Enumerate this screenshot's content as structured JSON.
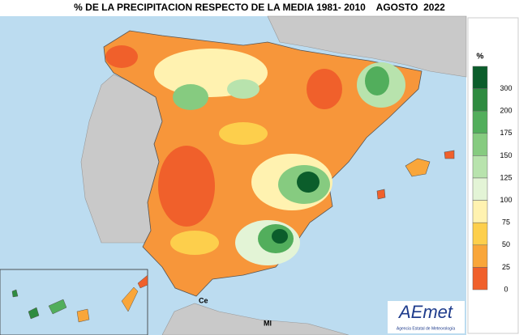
{
  "title": "% DE LA PRECIPITACION RESPECTO DE LA MEDIA 1981- 2010    AGOSTO  2022",
  "legend": {
    "unit": "%",
    "items": [
      {
        "label": 300,
        "color": "#0b5d2b"
      },
      {
        "label": 200,
        "color": "#2e8b40"
      },
      {
        "label": 175,
        "color": "#52ae5c"
      },
      {
        "label": 150,
        "color": "#86cb80"
      },
      {
        "label": 125,
        "color": "#b8e3ad"
      },
      {
        "label": 100,
        "color": "#e3f4d6"
      },
      {
        "label": 75,
        "color": "#fff2b0"
      },
      {
        "label": 50,
        "color": "#fdcf4c"
      },
      {
        "label": 25,
        "color": "#f9a63a"
      },
      {
        "label": 0,
        "color": "#f0602b"
      }
    ]
  },
  "places": [
    "Ce",
    "Ml"
  ],
  "logo": {
    "brand": "AEmet",
    "subtitle": "Agencia Estatal de Meteorología"
  }
}
